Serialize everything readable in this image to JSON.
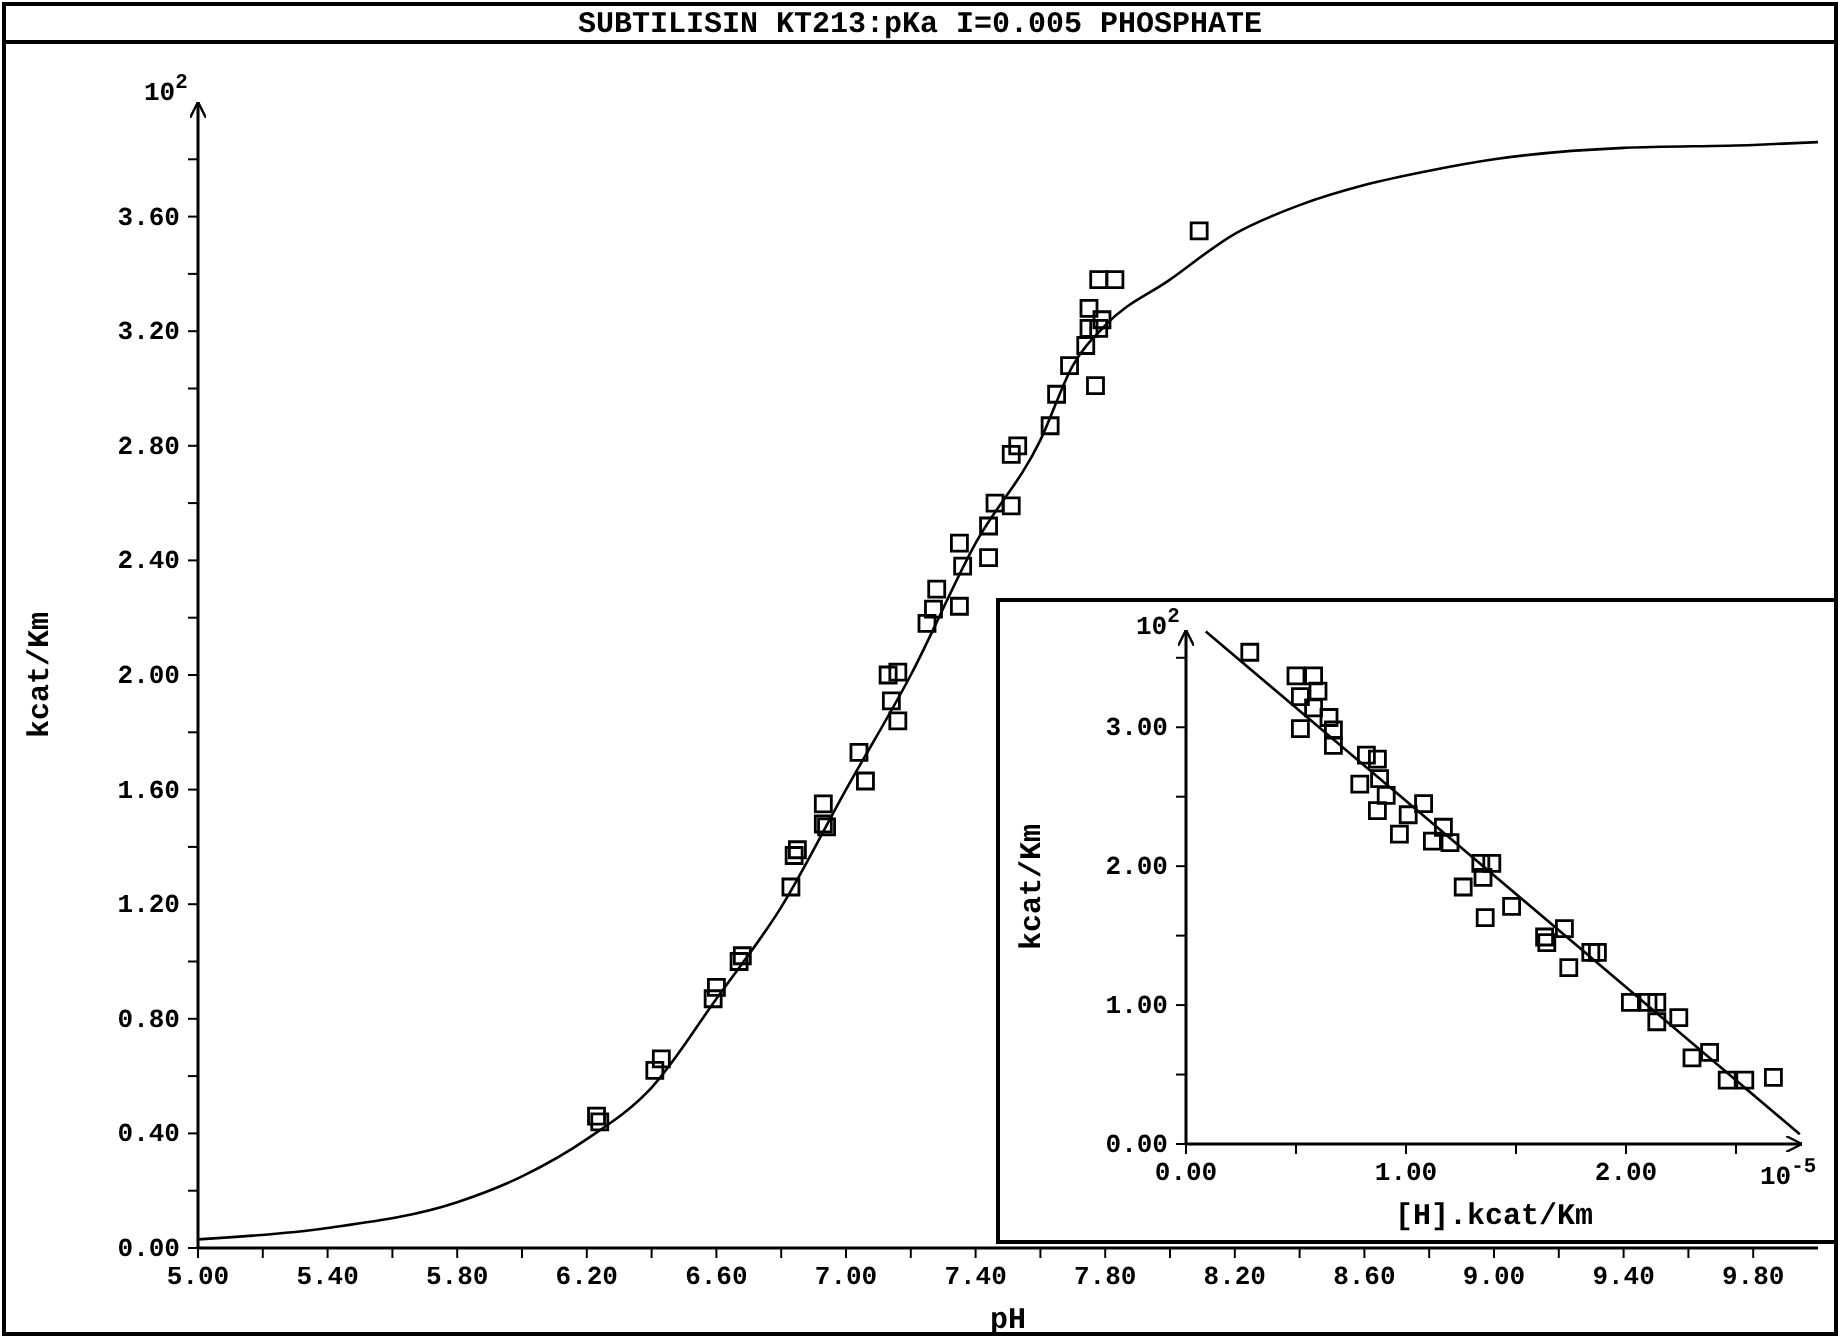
{
  "chart_data": [
    {
      "type": "scatter",
      "title": "SUBTILISIN KT213:pKa I=0.005 PHOSPHATE",
      "xlabel": "pH",
      "ylabel": "kcat/Km",
      "annotations": [
        "10$^{2}$"
      ],
      "xlim": [
        5,
        10
      ],
      "ylim": [
        0,
        4
      ],
      "xticks": [
        {
          "value": 5,
          "label": "5.00"
        },
        {
          "value": 5.2,
          "label": null
        },
        {
          "value": 5.4,
          "label": "5.40"
        },
        {
          "value": 5.6,
          "label": null
        },
        {
          "value": 5.8,
          "label": "5.80"
        },
        {
          "value": 6,
          "label": null
        },
        {
          "value": 6.2,
          "label": "6.20"
        },
        {
          "value": 6.4,
          "label": null
        },
        {
          "value": 6.6,
          "label": "6.60"
        },
        {
          "value": 6.8,
          "label": null
        },
        {
          "value": 7,
          "label": "7.00"
        },
        {
          "value": 7.2,
          "label": null
        },
        {
          "value": 7.4,
          "label": "7.40"
        },
        {
          "value": 7.6,
          "label": null
        },
        {
          "value": 7.8,
          "label": "7.80"
        },
        {
          "value": 8,
          "label": null
        },
        {
          "value": 8.2,
          "label": "8.20"
        },
        {
          "value": 8.4,
          "label": null
        },
        {
          "value": 8.6,
          "label": "8.60"
        },
        {
          "value": 8.8,
          "label": null
        },
        {
          "value": 9,
          "label": "9.00"
        },
        {
          "value": 9.2,
          "label": null
        },
        {
          "value": 9.4,
          "label": "9.40"
        },
        {
          "value": 9.6,
          "label": null
        },
        {
          "value": 9.8,
          "label": "9.80"
        }
      ],
      "yticks": [
        {
          "value": 0,
          "label": "0.00"
        },
        {
          "value": 0.2,
          "label": null
        },
        {
          "value": 0.4,
          "label": "0.40"
        },
        {
          "value": 0.6,
          "label": null
        },
        {
          "value": 0.8,
          "label": "0.80"
        },
        {
          "value": 1,
          "label": null
        },
        {
          "value": 1.2,
          "label": "1.20"
        },
        {
          "value": 1.4,
          "label": null
        },
        {
          "value": 1.6,
          "label": "1.60"
        },
        {
          "value": 1.8,
          "label": null
        },
        {
          "value": 2,
          "label": "2.00"
        },
        {
          "value": 2.2,
          "label": null
        },
        {
          "value": 2.4,
          "label": "2.40"
        },
        {
          "value": 2.6,
          "label": null
        },
        {
          "value": 2.8,
          "label": "2.80"
        },
        {
          "value": 3,
          "label": null
        },
        {
          "value": 3.2,
          "label": "3.20"
        },
        {
          "value": 3.4,
          "label": null
        },
        {
          "value": 3.6,
          "label": "3.60"
        },
        {
          "value": 3.8,
          "label": null
        }
      ],
      "series": [
        {
          "type": "line",
          "marker": "none",
          "color": "#000000",
          "x": [
            5,
            5.4,
            5.8,
            6,
            6.2,
            6.4,
            6.6,
            6.8,
            7,
            7.2,
            7.4,
            7.6,
            7.7,
            7.8,
            8,
            8.2,
            8.4,
            8.6,
            8.8,
            9,
            9.4,
            9.8,
            10
          ],
          "values": [
            0.03,
            0.07,
            0.16,
            0.25,
            0.38,
            0.56,
            0.87,
            1.19,
            1.6,
            2,
            2.46,
            2.82,
            3.08,
            3.22,
            3.38,
            3.54,
            3.64,
            3.71,
            3.76,
            3.8,
            3.84,
            3.85,
            3.86
          ]
        },
        {
          "type": "scatter",
          "marker": "square",
          "color": "#000000",
          "x": [
            6.23,
            6.24,
            6.41,
            6.43,
            6.59,
            6.6,
            6.67,
            6.68,
            6.83,
            6.84,
            6.85,
            6.93,
            6.93,
            6.94,
            7.04,
            7.06,
            7.13,
            7.14,
            7.16,
            7.16,
            7.25,
            7.27,
            7.28,
            7.35,
            7.35,
            7.36,
            7.44,
            7.44,
            7.46,
            7.51,
            7.51,
            7.53,
            7.63,
            7.65,
            7.69,
            7.74,
            7.77,
            7.75,
            7.75,
            7.79,
            7.78,
            7.78,
            7.83,
            8.09
          ],
          "values": [
            0.46,
            0.44,
            0.62,
            0.66,
            0.87,
            0.91,
            1.0,
            1.02,
            1.26,
            1.37,
            1.39,
            1.55,
            1.48,
            1.47,
            1.73,
            1.63,
            2.0,
            1.91,
            1.84,
            2.01,
            2.18,
            2.23,
            2.3,
            2.24,
            2.46,
            2.38,
            2.41,
            2.52,
            2.6,
            2.59,
            2.77,
            2.8,
            2.87,
            2.98,
            3.08,
            3.15,
            3.01,
            3.21,
            3.28,
            3.24,
            3.21,
            3.38,
            3.38,
            3.55
          ]
        }
      ]
    },
    {
      "type": "scatter",
      "xlabel": "[H].kcat/Km",
      "ylabel": "kcat/Km",
      "annotations": [
        "10$^{2}$",
        "10$^{-5}$"
      ],
      "xlim": [
        0,
        2.8
      ],
      "ylim": [
        0,
        3.7
      ],
      "xticks": [
        {
          "value": 0,
          "label": "0.00"
        },
        {
          "value": 0.5,
          "label": null
        },
        {
          "value": 1,
          "label": "1.00"
        },
        {
          "value": 1.5,
          "label": null
        },
        {
          "value": 2,
          "label": "2.00"
        },
        {
          "value": 2.5,
          "label": null
        }
      ],
      "yticks": [
        {
          "value": 0,
          "label": "0.00"
        },
        {
          "value": 0.5,
          "label": null
        },
        {
          "value": 1,
          "label": "1.00"
        },
        {
          "value": 1.5,
          "label": null
        },
        {
          "value": 2,
          "label": "2.00"
        },
        {
          "value": 2.5,
          "label": null
        },
        {
          "value": 3,
          "label": "3.00"
        },
        {
          "value": 3.5,
          "label": null
        }
      ],
      "series": [
        {
          "type": "line",
          "marker": "none",
          "color": "#000000",
          "x": [
            0.09,
            2.79
          ],
          "values": [
            3.69,
            0.07
          ]
        },
        {
          "type": "scatter",
          "marker": "square",
          "color": "#000000",
          "x": [
            0.29,
            0.5,
            0.58,
            0.52,
            0.6,
            0.58,
            0.52,
            0.65,
            0.67,
            0.67,
            0.82,
            0.87,
            0.79,
            0.88,
            0.91,
            0.87,
            0.97,
            1.01,
            1.08,
            1.12,
            1.17,
            1.2,
            1.34,
            1.39,
            1.26,
            1.35,
            1.36,
            1.48,
            1.63,
            1.64,
            1.72,
            1.74,
            1.84,
            1.87,
            2.02,
            2.1,
            2.14,
            2.14,
            2.24,
            2.3,
            2.38,
            2.46,
            2.54,
            2.67
          ],
          "values": [
            3.54,
            3.37,
            3.37,
            3.22,
            3.26,
            3.14,
            2.99,
            3.07,
            2.98,
            2.87,
            2.8,
            2.77,
            2.59,
            2.63,
            2.51,
            2.4,
            2.23,
            2.37,
            2.45,
            2.18,
            2.28,
            2.17,
            2.02,
            2.02,
            1.85,
            1.92,
            1.63,
            1.71,
            1.49,
            1.45,
            1.55,
            1.27,
            1.38,
            1.38,
            1.02,
            1.02,
            1.02,
            0.88,
            0.91,
            0.62,
            0.66,
            0.46,
            0.46,
            0.48
          ]
        }
      ]
    }
  ]
}
